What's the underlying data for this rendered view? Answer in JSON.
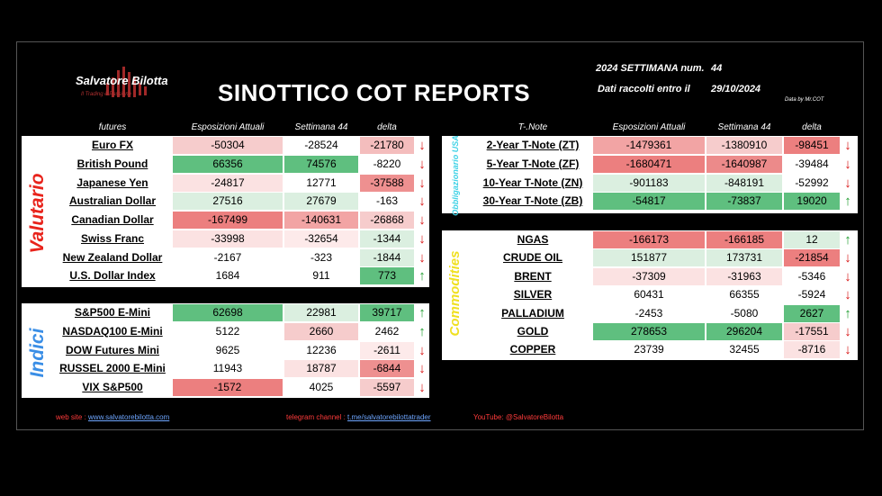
{
  "header": {
    "logo_name": "Salvatore Bilotta",
    "logo_tagline": "Il Trading è Passione",
    "title": "SINOTTICO COT REPORTS",
    "week_label": "2024 SETTIMANA num.",
    "week_value": "44",
    "date_label": "Dati raccolti entro il",
    "date_value": "29/10/2024",
    "credit": "Data by Mr.COT"
  },
  "left_columns": {
    "name": "futures",
    "current": "Esposizioni Attuali",
    "week": "Settimana 44",
    "delta": "delta"
  },
  "right_columns": {
    "name": "T-.Note",
    "current": "Esposizioni Attuali",
    "week": "Settimana 44",
    "delta": "delta"
  },
  "sections": {
    "valutario": "Valutario",
    "indici": "Indici",
    "obbligazionario": "Obbligazionario USA",
    "commodities": "Commodities"
  },
  "colors": {
    "label_red": "#e8231b",
    "label_blue": "#3a8ee6",
    "label_cyan": "#3fd2e6",
    "label_yellow": "#f0e020"
  },
  "valutario": [
    {
      "name": "Euro FX",
      "current": "-50304",
      "week": "-28524",
      "delta": "-21780",
      "dir": "down",
      "c1": "#f6cccc",
      "c2": "#fff",
      "c3": "#f4bdbd"
    },
    {
      "name": "British Pound",
      "current": "66356",
      "week": "74576",
      "delta": "-8220",
      "dir": "down",
      "c1": "#5fbf7f",
      "c2": "#5fbf7f",
      "c3": "#fff"
    },
    {
      "name": "Japanese Yen",
      "current": "-24817",
      "week": "12771",
      "delta": "-37588",
      "dir": "down",
      "c1": "#fbe2e2",
      "c2": "#fff",
      "c3": "#ee9090"
    },
    {
      "name": "Australian Dollar",
      "current": "27516",
      "week": "27679",
      "delta": "-163",
      "dir": "down",
      "c1": "#dbefe0",
      "c2": "#dbefe0",
      "c3": "#fff"
    },
    {
      "name": "Canadian Dollar",
      "current": "-167499",
      "week": "-140631",
      "delta": "-26868",
      "dir": "down",
      "c1": "#ec7f7f",
      "c2": "#f2a4a4",
      "c3": "#f6cccc"
    },
    {
      "name": "Swiss Franc",
      "current": "-33998",
      "week": "-32654",
      "delta": "-1344",
      "dir": "down",
      "c1": "#fbe2e2",
      "c2": "#fdeaea",
      "c3": "#dbefe0"
    },
    {
      "name": "New Zealand Dollar",
      "current": "-2167",
      "week": "-323",
      "delta": "-1844",
      "dir": "down",
      "c1": "#fff",
      "c2": "#fff",
      "c3": "#dbefe0"
    },
    {
      "name": "U.S. Dollar Index",
      "current": "1684",
      "week": "911",
      "delta": "773",
      "dir": "up",
      "c1": "#fff",
      "c2": "#fff",
      "c3": "#5fbf7f"
    }
  ],
  "indici": [
    {
      "name": "S&P500 E-Mini",
      "current": "62698",
      "week": "22981",
      "delta": "39717",
      "dir": "up",
      "c1": "#5fbf7f",
      "c2": "#dbefe0",
      "c3": "#5fbf7f"
    },
    {
      "name": "NASDAQ100 E-Mini",
      "current": "5122",
      "week": "2660",
      "delta": "2462",
      "dir": "up",
      "c1": "#fff",
      "c2": "#f6cccc",
      "c3": "#fff"
    },
    {
      "name": "DOW Futures Mini",
      "current": "9625",
      "week": "12236",
      "delta": "-2611",
      "dir": "down",
      "c1": "#fff",
      "c2": "#fff",
      "c3": "#fdeaea"
    },
    {
      "name": "RUSSEL 2000 E-Mini",
      "current": "11943",
      "week": "18787",
      "delta": "-6844",
      "dir": "down",
      "c1": "#fff",
      "c2": "#fbe2e2",
      "c3": "#ee9090"
    },
    {
      "name": "VIX S&P500",
      "current": "-1572",
      "week": "4025",
      "delta": "-5597",
      "dir": "down",
      "c1": "#ec7f7f",
      "c2": "#fff",
      "c3": "#f6cccc"
    }
  ],
  "tnote": [
    {
      "name": "2-Year T-Note (ZT)",
      "current": "-1479361",
      "week": "-1380910",
      "delta": "-98451",
      "dir": "down",
      "c1": "#f2a4a4",
      "c2": "#f6cccc",
      "c3": "#ec7f7f"
    },
    {
      "name": "5-Year T-Note (ZF)",
      "current": "-1680471",
      "week": "-1640987",
      "delta": "-39484",
      "dir": "down",
      "c1": "#ec7f7f",
      "c2": "#ec8a8a",
      "c3": "#fff"
    },
    {
      "name": "10-Year T-Note (ZN)",
      "current": "-901183",
      "week": "-848191",
      "delta": "-52992",
      "dir": "down",
      "c1": "#dbefe0",
      "c2": "#dbefe0",
      "c3": "#fff"
    },
    {
      "name": "30-Year T-Note (ZB)",
      "current": "-54817",
      "week": "-73837",
      "delta": "19020",
      "dir": "up",
      "c1": "#5fbf7f",
      "c2": "#5fbf7f",
      "c3": "#5fbf7f"
    }
  ],
  "commodities": [
    {
      "name": "NGAS",
      "current": "-166173",
      "week": "-166185",
      "delta": "12",
      "dir": "up",
      "c1": "#ec7f7f",
      "c2": "#ec7f7f",
      "c3": "#dbefe0"
    },
    {
      "name": "CRUDE OIL",
      "current": "151877",
      "week": "173731",
      "delta": "-21854",
      "dir": "down",
      "c1": "#dbefe0",
      "c2": "#dbefe0",
      "c3": "#ec7f7f"
    },
    {
      "name": "BRENT",
      "current": "-37309",
      "week": "-31963",
      "delta": "-5346",
      "dir": "down",
      "c1": "#fbe2e2",
      "c2": "#fbe2e2",
      "c3": "#fff"
    },
    {
      "name": "SILVER",
      "current": "60431",
      "week": "66355",
      "delta": "-5924",
      "dir": "down",
      "c1": "#fff",
      "c2": "#fff",
      "c3": "#fff"
    },
    {
      "name": "PALLADIUM",
      "current": "-2453",
      "week": "-5080",
      "delta": "2627",
      "dir": "up",
      "c1": "#fff",
      "c2": "#fff",
      "c3": "#5fbf7f"
    },
    {
      "name": "GOLD",
      "current": "278653",
      "week": "296204",
      "delta": "-17551",
      "dir": "down",
      "c1": "#5fbf7f",
      "c2": "#5fbf7f",
      "c3": "#f6cccc"
    },
    {
      "name": "COPPER",
      "current": "23739",
      "week": "32455",
      "delta": "-8716",
      "dir": "down",
      "c1": "#fff",
      "c2": "#fff",
      "c3": "#fbe2e2"
    }
  ],
  "footer": {
    "web_label": "web site : ",
    "web_link": "www.salvatorebilotta.com",
    "tg_label": "telegram channel : ",
    "tg_link": "t.me/salvatorebilottatrader",
    "yt": "YouTube: @SalvatoreBilotta"
  }
}
